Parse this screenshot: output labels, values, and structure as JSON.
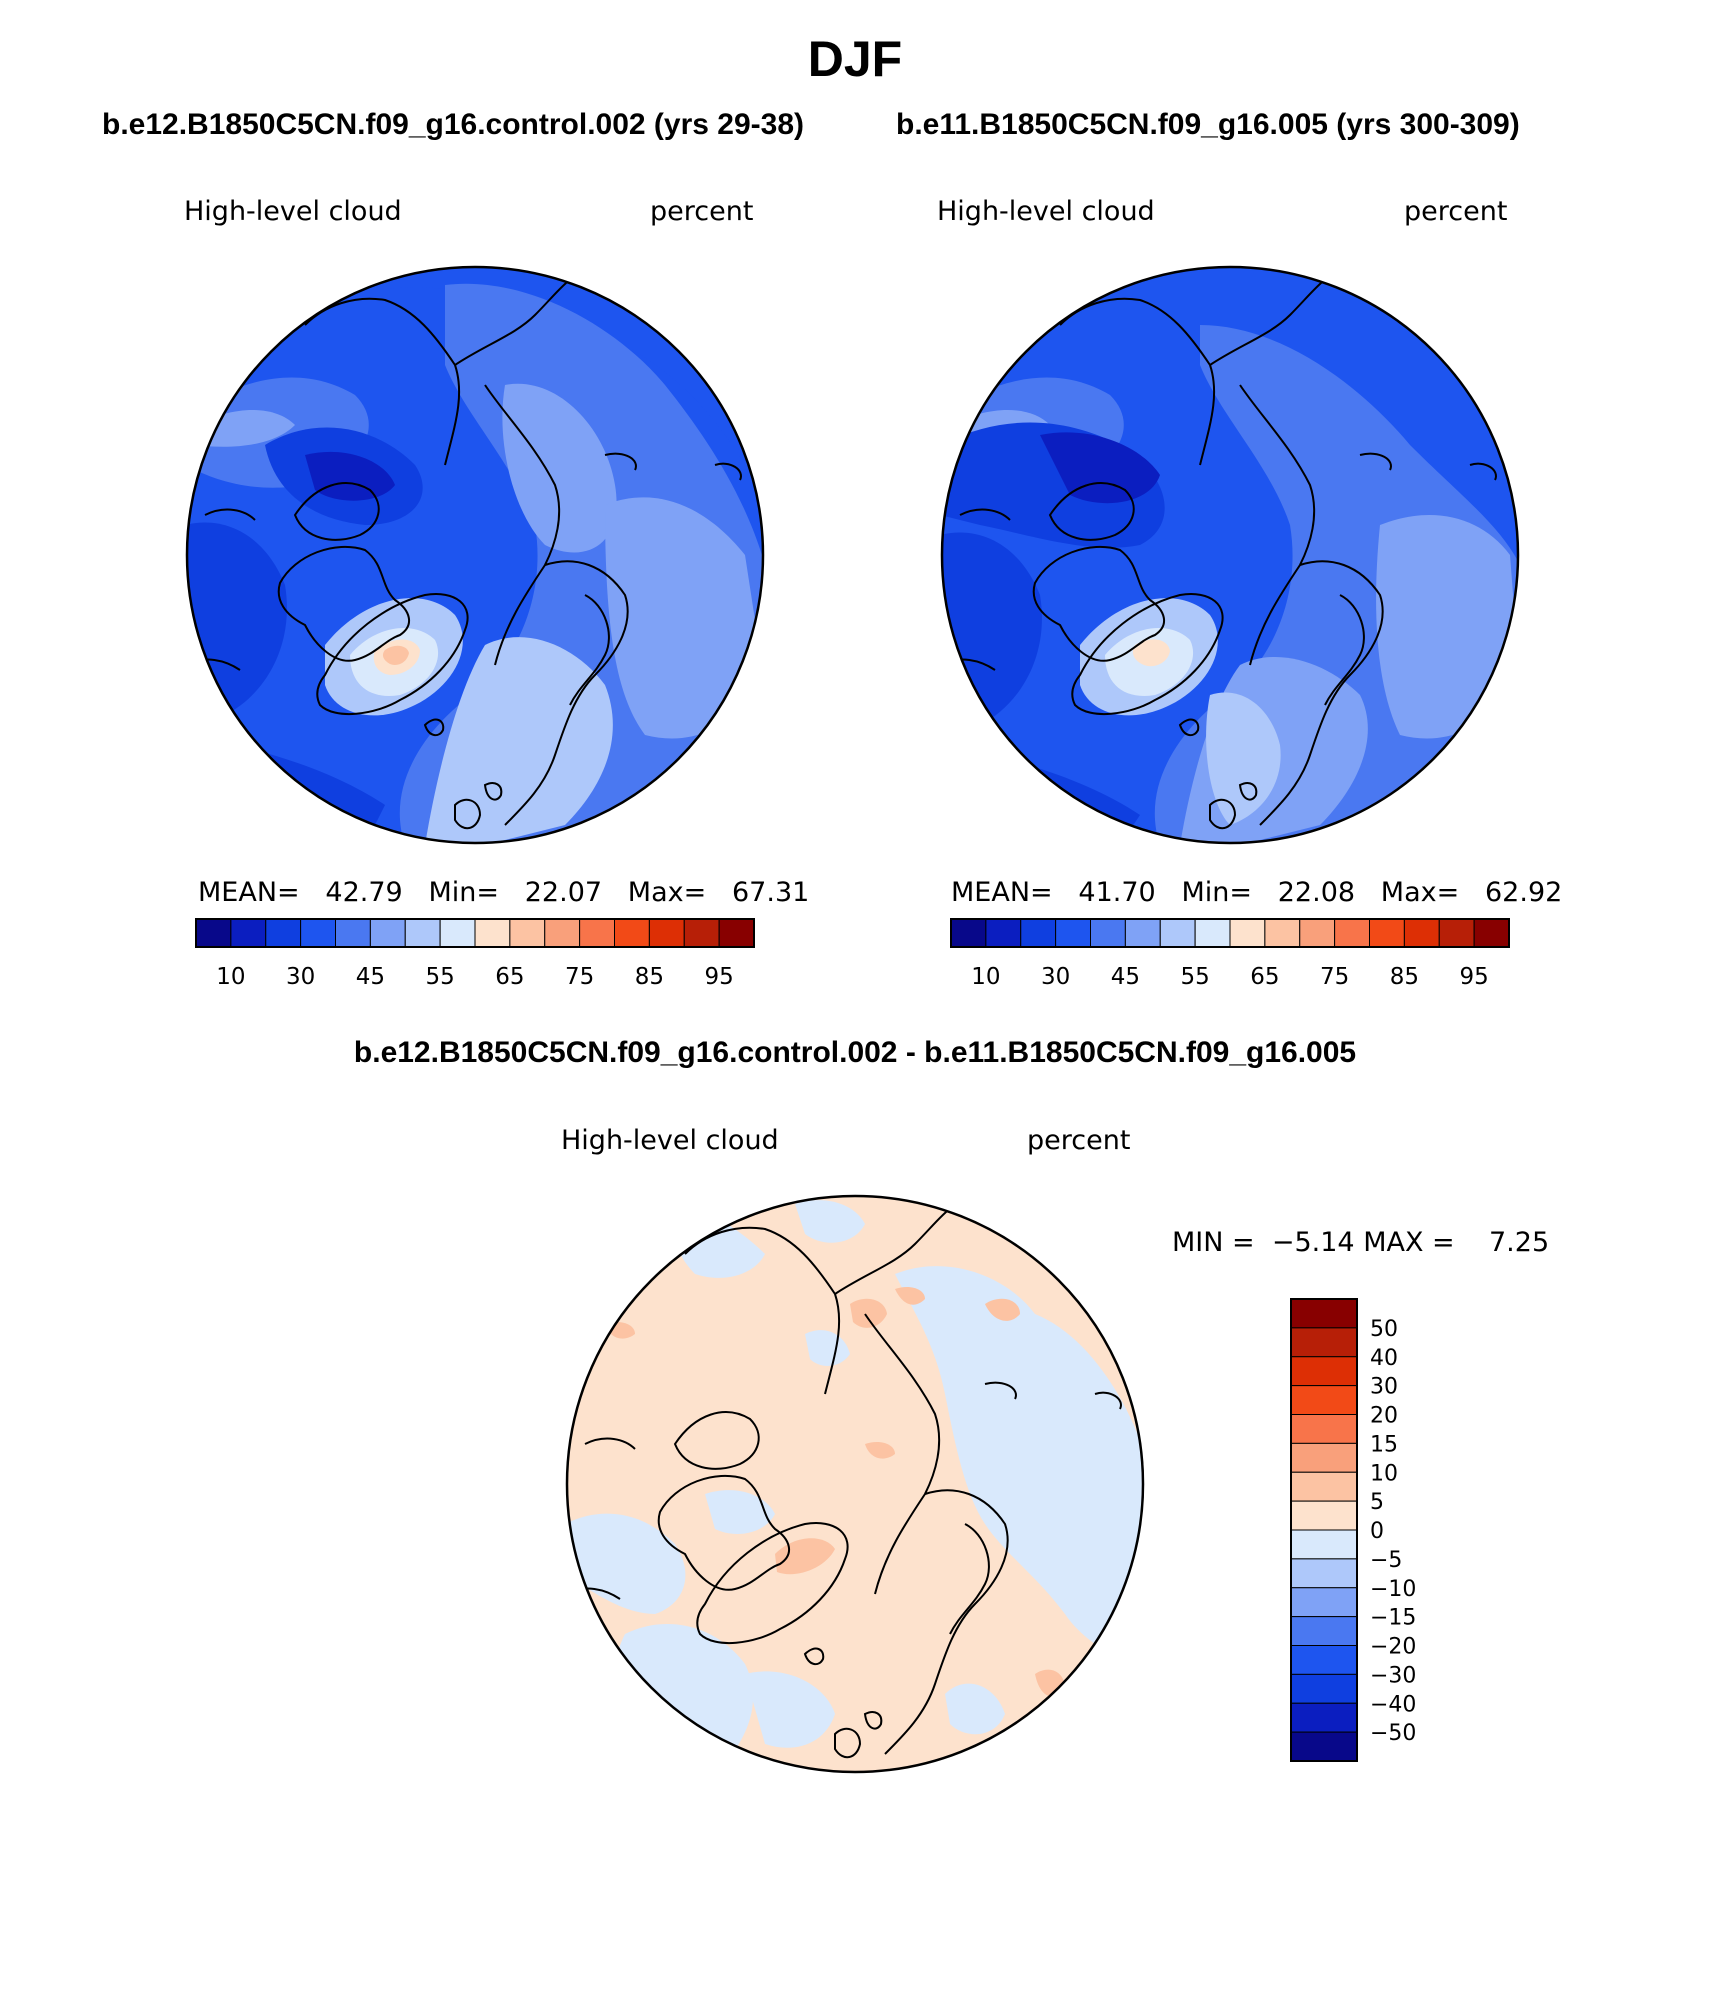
{
  "page": {
    "season": "DJF",
    "case1_title": "b.e12.B1850C5CN.f09_g16.control.002 (yrs 29-38)",
    "case2_title": "b.e11.B1850C5CN.f09_g16.005 (yrs 300-309)",
    "diff_title": "b.e12.B1850C5CN.f09_g16.control.002 - b.e11.B1850C5CN.f09_g16.005"
  },
  "colors": {
    "abs_scale": [
      "#08088a",
      "#0b1ec0",
      "#0f3fe0",
      "#1e55ef",
      "#4a78f1",
      "#7fa2f6",
      "#aec8fa",
      "#d9e9fc",
      "#fde2cd",
      "#fcc3a3",
      "#f9a07b",
      "#f8744a",
      "#f24a17",
      "#dd2f05",
      "#b71f07",
      "#880000"
    ],
    "diff_scale": [
      "#08088a",
      "#0b1ec0",
      "#0f3fe0",
      "#1e55ef",
      "#4a78f1",
      "#7fa2f6",
      "#aec8fa",
      "#d9e9fc",
      "#fde2cd",
      "#fcc3a3",
      "#f9a07b",
      "#f8744a",
      "#f24a17",
      "#dd2f05",
      "#b71f07",
      "#880000"
    ],
    "coastline": "#000000"
  },
  "panels": [
    {
      "field": "High-level cloud",
      "units": "percent",
      "stats": {
        "mean_label": "MEAN=",
        "mean": "42.79",
        "min_label": "Min=",
        "min": "22.07",
        "max_label": "Max=",
        "max": "67.31"
      },
      "colorbar_labels": [
        "10",
        "30",
        "45",
        "55",
        "65",
        "75",
        "85",
        "95"
      ]
    },
    {
      "field": "High-level cloud",
      "units": "percent",
      "stats": {
        "mean_label": "MEAN=",
        "mean": "41.70",
        "min_label": "Min=",
        "min": "22.08",
        "max_label": "Max=",
        "max": "62.92"
      },
      "colorbar_labels": [
        "10",
        "30",
        "45",
        "55",
        "65",
        "75",
        "85",
        "95"
      ]
    }
  ],
  "diff_panel": {
    "field": "High-level cloud",
    "units": "percent",
    "min_label": "MIN =",
    "min": "−5.14",
    "max_label": "MAX =",
    "max": "7.25",
    "colorbar_labels": [
      "50",
      "40",
      "30",
      "20",
      "15",
      "10",
      "5",
      "0",
      "−5",
      "−10",
      "−15",
      "−20",
      "−30",
      "−40",
      "−50"
    ]
  }
}
